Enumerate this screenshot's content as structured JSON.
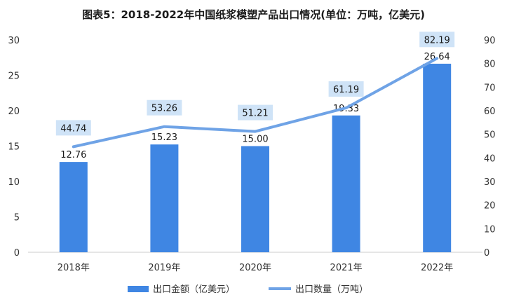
{
  "chart_data": {
    "type": "bar+line",
    "title": "图表5：2018-2022年中国纸浆模塑产品出口情况(单位：万吨，亿美元)",
    "categories": [
      "2018年",
      "2019年",
      "2020年",
      "2021年",
      "2022年"
    ],
    "series": [
      {
        "name": "出口金额（亿美元）",
        "type": "bar",
        "axis": "left",
        "values": [
          12.76,
          15.23,
          15.0,
          19.33,
          26.64
        ],
        "labels": [
          "12.76",
          "15.23",
          "15.00",
          "19.33",
          "26.64"
        ],
        "color": "#3f86e3"
      },
      {
        "name": "出口数量（万吨）",
        "type": "line",
        "axis": "right",
        "values": [
          44.74,
          53.26,
          51.21,
          61.19,
          82.19
        ],
        "labels": [
          "44.74",
          "53.26",
          "51.21",
          "61.19",
          "82.19"
        ],
        "color": "#6fa3e6",
        "label_bg": "#cfe3f7"
      }
    ],
    "y_left": {
      "min": 0,
      "max": 30,
      "ticks": [
        "0",
        "5",
        "10",
        "15",
        "20",
        "25",
        "30"
      ]
    },
    "y_right": {
      "min": 0,
      "max": 90,
      "ticks": [
        "0",
        "10",
        "20",
        "30",
        "40",
        "50",
        "60",
        "70",
        "80",
        "90"
      ]
    },
    "grid": false,
    "legend_position": "bottom"
  }
}
